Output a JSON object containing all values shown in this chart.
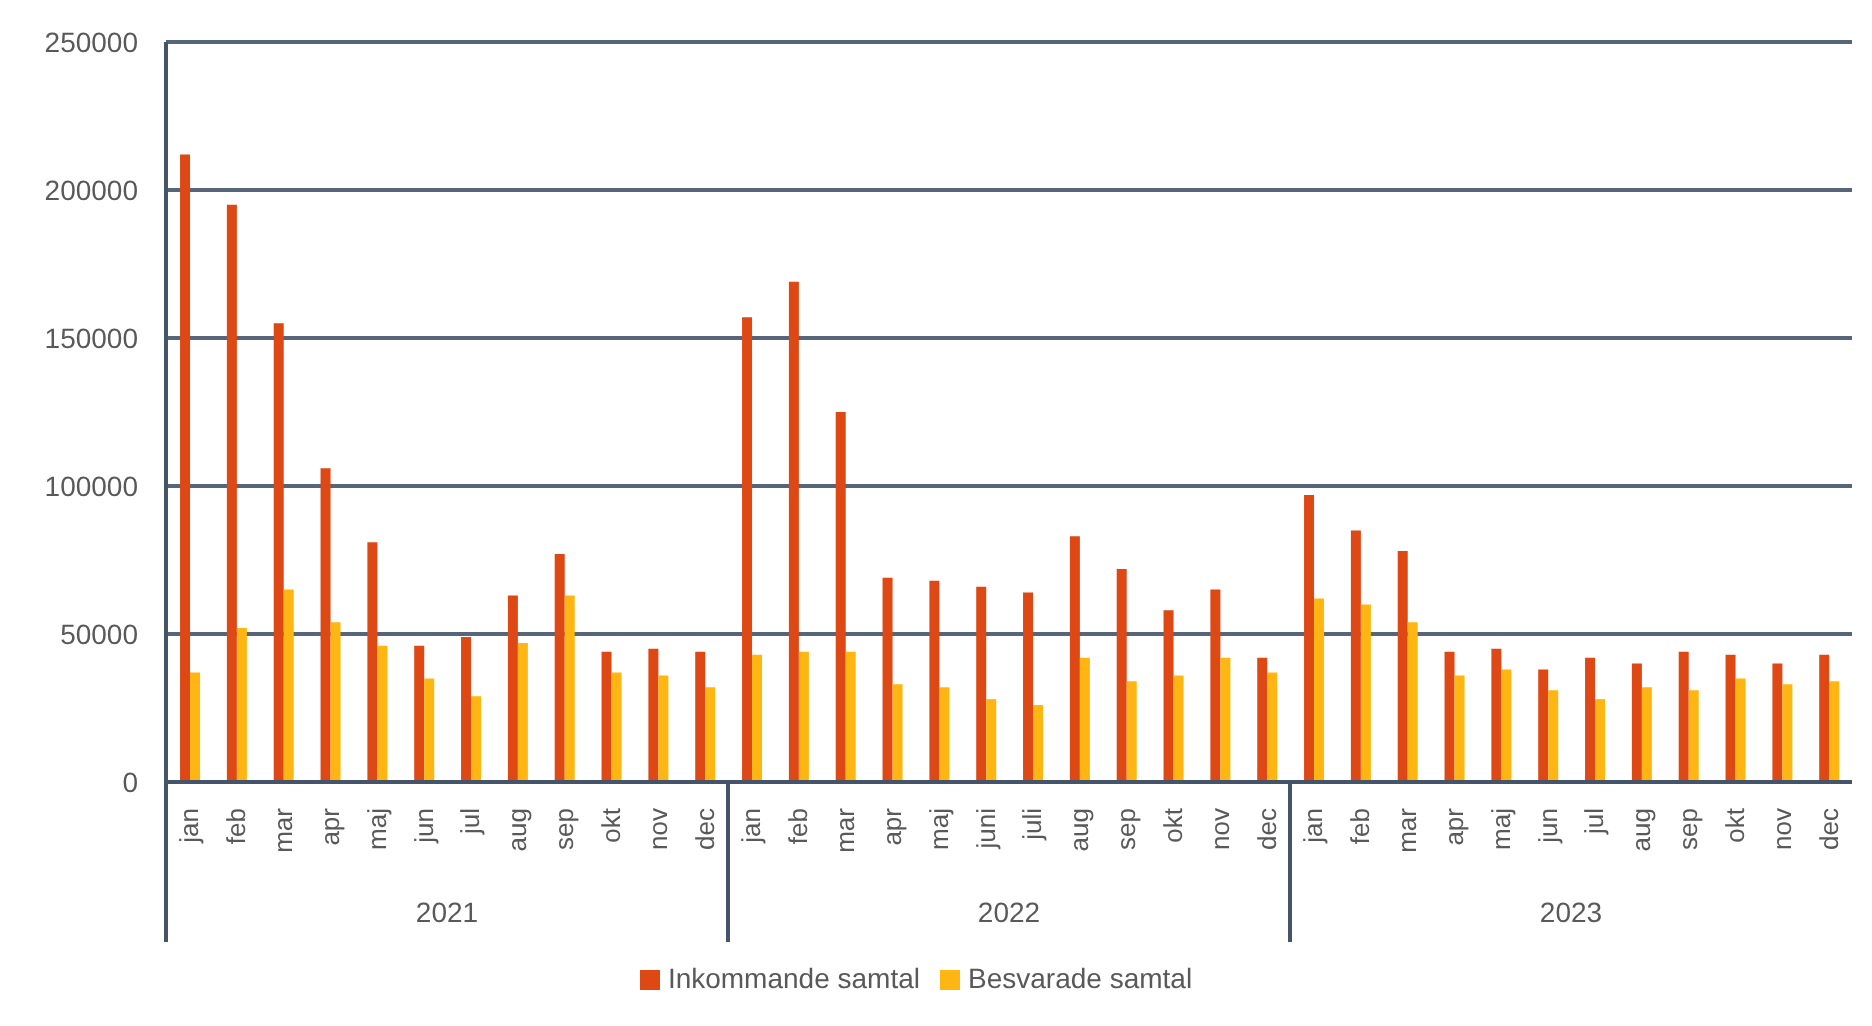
{
  "chart_data": {
    "type": "bar",
    "categories": [
      "jan",
      "feb",
      "mar",
      "apr",
      "maj",
      "jun",
      "jul",
      "aug",
      "sep",
      "okt",
      "nov",
      "dec",
      "jan",
      "feb",
      "mar",
      "apr",
      "maj",
      "juni",
      "juli",
      "aug",
      "sep",
      "okt",
      "nov",
      "dec",
      "jan",
      "feb",
      "mar",
      "apr",
      "maj",
      "jun",
      "jul",
      "aug",
      "sep",
      "okt",
      "nov",
      "dec"
    ],
    "series": [
      {
        "name": "Inkommande samtal",
        "color": "#dd4814",
        "values": [
          212000,
          195000,
          155000,
          106000,
          81000,
          46000,
          49000,
          63000,
          77000,
          44000,
          45000,
          44000,
          157000,
          169000,
          125000,
          69000,
          68000,
          66000,
          64000,
          83000,
          72000,
          58000,
          65000,
          42000,
          97000,
          85000,
          78000,
          44000,
          45000,
          38000,
          42000,
          40000,
          44000,
          43000,
          40000,
          43000
        ]
      },
      {
        "name": "Besvarade samtal",
        "color": "#ffb612",
        "values": [
          37000,
          52000,
          65000,
          54000,
          46000,
          35000,
          29000,
          47000,
          63000,
          37000,
          36000,
          32000,
          43000,
          44000,
          44000,
          33000,
          32000,
          28000,
          26000,
          42000,
          34000,
          36000,
          42000,
          37000,
          62000,
          60000,
          54000,
          36000,
          38000,
          31000,
          28000,
          32000,
          31000,
          35000,
          33000,
          34000
        ]
      }
    ],
    "ylim": [
      0,
      250000
    ],
    "yticks": [
      0,
      50000,
      100000,
      150000,
      200000,
      250000
    ],
    "grid": "y",
    "legend": "bottom",
    "annotations": [
      "2021",
      "2022",
      "2023"
    ]
  }
}
